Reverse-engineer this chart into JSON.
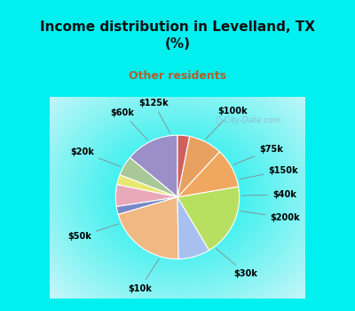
{
  "title": "Income distribution in Levelland, TX\n(%)",
  "subtitle": "Other residents",
  "watermark": "ⓘ City-Data.com",
  "labels": [
    "$100k",
    "$75k",
    "$150k",
    "$40k",
    "$200k",
    "$30k",
    "$10k",
    "$50k",
    "$20k",
    "$60k",
    "$125k"
  ],
  "values": [
    13.5,
    5.0,
    2.5,
    5.5,
    2.0,
    20.0,
    8.0,
    18.5,
    10.0,
    8.5,
    3.0
  ],
  "colors": [
    "#9b8fc7",
    "#a8c898",
    "#e8e870",
    "#e8a8b8",
    "#7888c8",
    "#f0b882",
    "#a8c0f0",
    "#b8e060",
    "#f0a860",
    "#e8a060",
    "#d06060"
  ],
  "startangle": 90,
  "bg_cyan": "#00f0f0",
  "bg_chart": "#d8f0e8",
  "title_color": "#111111",
  "subtitle_color": "#b06030",
  "label_fontsize": 7,
  "title_fontsize": 11
}
